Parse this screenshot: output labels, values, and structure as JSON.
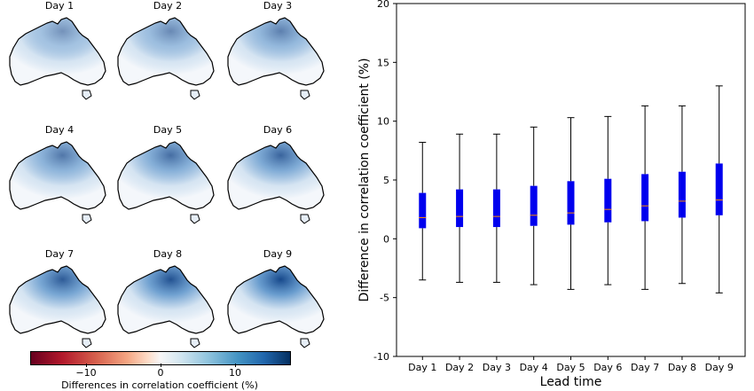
{
  "maps": {
    "titles": [
      "Day 1",
      "Day 2",
      "Day 3",
      "Day 4",
      "Day 5",
      "Day 6",
      "Day 7",
      "Day 8",
      "Day 9"
    ],
    "colorbar": {
      "ticks": [
        "−10",
        "0",
        "10"
      ],
      "tick_values": [
        -10,
        0,
        10
      ],
      "range": [
        -17.5,
        17.5
      ],
      "label": "Differences in correlation coefficient (%)",
      "colors": {
        "negative": "#b2182b",
        "neutral": "#f7f7f7",
        "positive": "#2166ac"
      }
    }
  },
  "chart_data": {
    "type": "box",
    "categories": [
      "Day 1",
      "Day 2",
      "Day 3",
      "Day 4",
      "Day 5",
      "Day 6",
      "Day 7",
      "Day 8",
      "Day 9"
    ],
    "whisker_low": [
      -3.5,
      -3.7,
      -3.7,
      -3.9,
      -4.3,
      -3.9,
      -4.3,
      -3.8,
      -4.6
    ],
    "q1": [
      0.9,
      1.0,
      1.0,
      1.1,
      1.2,
      1.4,
      1.5,
      1.8,
      2.0
    ],
    "median": [
      1.8,
      1.9,
      1.9,
      2.0,
      2.2,
      2.5,
      2.8,
      3.2,
      3.3
    ],
    "q3": [
      3.9,
      4.2,
      4.2,
      4.5,
      4.9,
      5.1,
      5.5,
      5.7,
      6.4
    ],
    "whisker_high": [
      8.2,
      8.9,
      8.9,
      9.5,
      10.3,
      10.4,
      11.3,
      11.3,
      13.0
    ],
    "ylim": [
      -10,
      20
    ],
    "yticks": [
      -10,
      -5,
      0,
      5,
      10,
      15,
      20
    ],
    "ylabel": "Difference in correlation coefficient (%)",
    "xlabel": "Lead time",
    "colors": {
      "box": "#0000ee",
      "median": "#ff8c00",
      "whisker": "#000000"
    }
  }
}
